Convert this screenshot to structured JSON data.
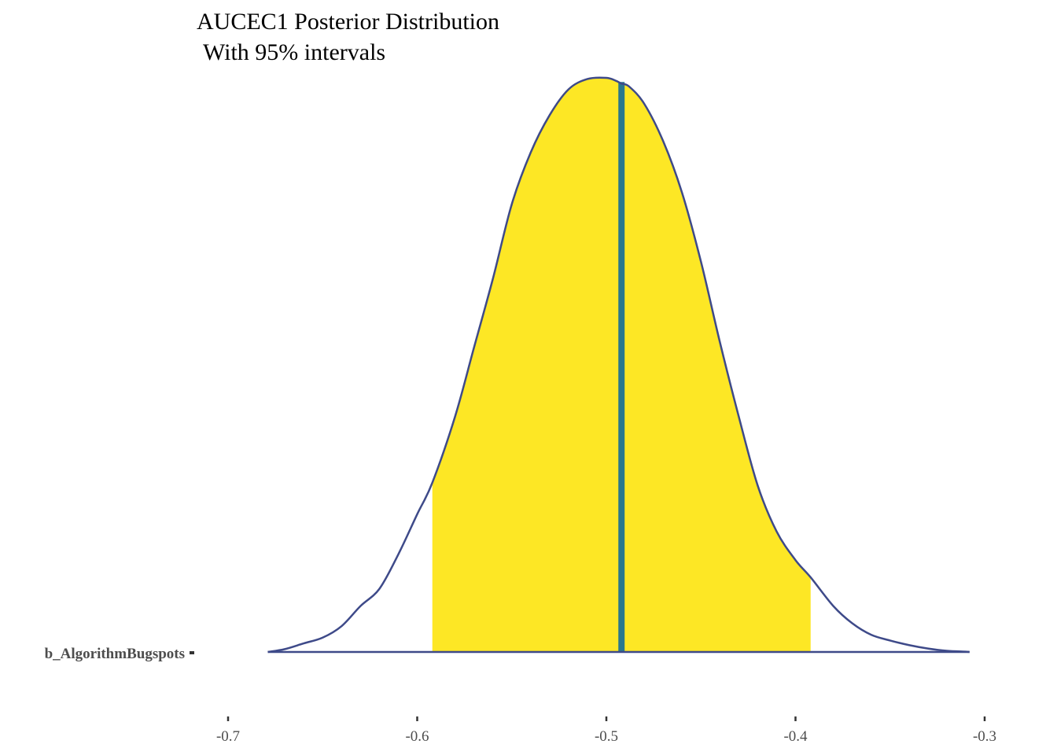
{
  "chart_data": {
    "type": "area",
    "title": "AUCEC1 Posterior Distribution",
    "subtitle": "With 95% intervals",
    "parameter": "b_AlgorithmBugspots",
    "xlim": [
      -0.75,
      -0.29
    ],
    "x_ticks": [
      -0.7,
      -0.6,
      -0.5,
      -0.4,
      -0.3
    ],
    "x_tick_labels": [
      "-0.7",
      "-0.6",
      "-0.5",
      "-0.4",
      "-0.3"
    ],
    "grid": false,
    "point_estimate": -0.492,
    "interval_95": [
      -0.592,
      -0.392
    ],
    "density": {
      "x": [
        -0.679,
        -0.67,
        -0.66,
        -0.65,
        -0.64,
        -0.63,
        -0.62,
        -0.61,
        -0.6,
        -0.592,
        -0.58,
        -0.57,
        -0.56,
        -0.55,
        -0.54,
        -0.53,
        -0.52,
        -0.51,
        -0.5,
        -0.495,
        -0.492,
        -0.488,
        -0.48,
        -0.47,
        -0.46,
        -0.45,
        -0.44,
        -0.43,
        -0.42,
        -0.41,
        -0.4,
        -0.392,
        -0.38,
        -0.37,
        -0.36,
        -0.35,
        -0.34,
        -0.33,
        -0.32,
        -0.31,
        -0.308
      ],
      "y": [
        0.0,
        0.005,
        0.015,
        0.025,
        0.045,
        0.08,
        0.11,
        0.17,
        0.24,
        0.295,
        0.41,
        0.53,
        0.65,
        0.78,
        0.87,
        0.935,
        0.98,
        0.998,
        1.0,
        0.995,
        0.99,
        0.985,
        0.955,
        0.89,
        0.8,
        0.68,
        0.54,
        0.41,
        0.29,
        0.21,
        0.16,
        0.13,
        0.08,
        0.05,
        0.03,
        0.02,
        0.012,
        0.006,
        0.002,
        0.0005,
        0.0
      ]
    },
    "colors": {
      "interval_fill": "#fde725",
      "outline": "#3e4a89",
      "median_line": "#2a788e",
      "baseline": "#3e4a89"
    }
  }
}
